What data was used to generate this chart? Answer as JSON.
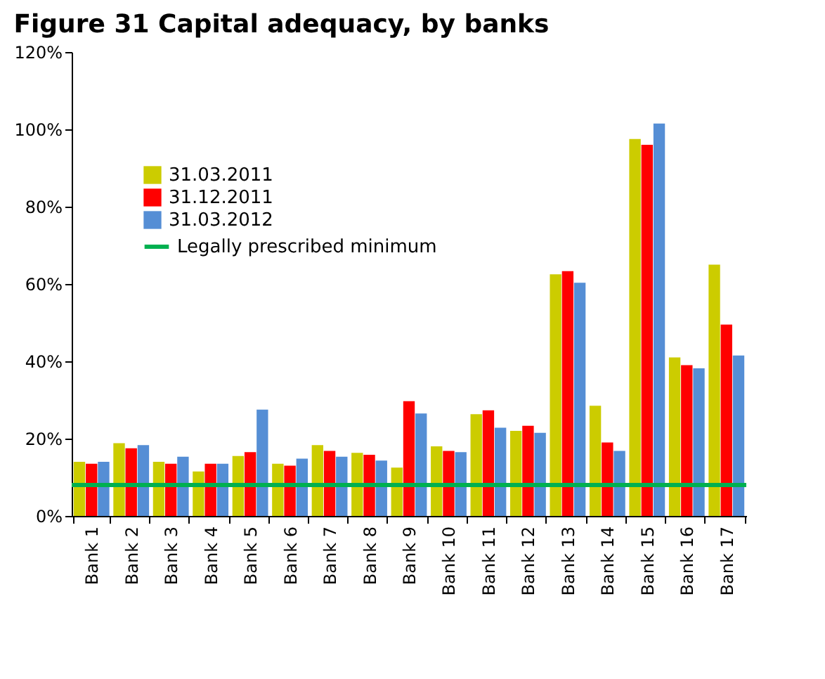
{
  "chart_data": {
    "type": "bar",
    "title": "Figure 31 Capital adequacy, by banks",
    "categories": [
      "Bank 1",
      "Bank 2",
      "Bank 3",
      "Bank 4",
      "Bank 5",
      "Bank 6",
      "Bank 7",
      "Bank 8",
      "Bank 9",
      "Bank 10",
      "Bank 11",
      "Bank 12",
      "Bank 13",
      "Bank 14",
      "Bank 15",
      "Bank 16",
      "Bank 17"
    ],
    "series": [
      {
        "name": "31.03.2011",
        "color": "#cccc00",
        "values": [
          14,
          18.8,
          14,
          11.5,
          15.5,
          13.5,
          18.3,
          16.3,
          12.5,
          18,
          26.3,
          22,
          62.5,
          28.5,
          97.5,
          41,
          65
        ]
      },
      {
        "name": "31.12.2011",
        "color": "#ff0000",
        "values": [
          13.5,
          17.5,
          13.5,
          13.5,
          16.5,
          13,
          16.8,
          15.8,
          29.7,
          16.8,
          27.3,
          23.3,
          63.3,
          19,
          96,
          39,
          49.5
        ]
      },
      {
        "name": "31.03.2012",
        "color": "#558ed5",
        "values": [
          14,
          18.3,
          15.3,
          13.5,
          27.5,
          14.8,
          15.3,
          14.3,
          26.5,
          16.5,
          22.8,
          21.5,
          60.3,
          16.8,
          101.5,
          38.2,
          41.5
        ]
      }
    ],
    "ylim": [
      0,
      120
    ],
    "yticks": [
      {
        "value": 0,
        "label": "0%"
      },
      {
        "value": 20,
        "label": "20%"
      },
      {
        "value": 40,
        "label": "40%"
      },
      {
        "value": 60,
        "label": "60%"
      },
      {
        "value": 80,
        "label": "80%"
      },
      {
        "value": 100,
        "label": "100%"
      },
      {
        "value": 120,
        "label": "120%"
      }
    ],
    "ref_lines": [
      {
        "axis": "y",
        "value": 8,
        "label": "Legally prescribed minimum",
        "color": "#00b050"
      }
    ],
    "legend": "top left",
    "grid": false
  }
}
